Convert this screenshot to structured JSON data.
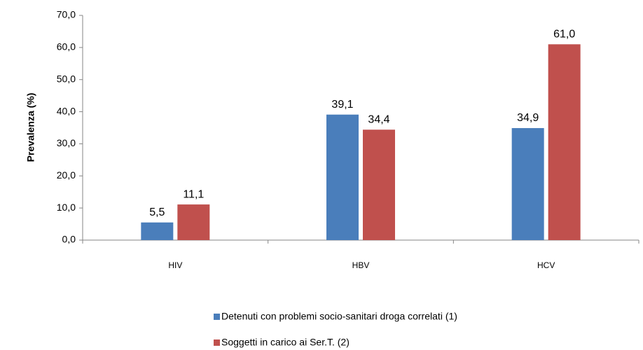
{
  "chart_data": {
    "type": "bar",
    "y_label": "Prevalenza (%)",
    "categories": [
      "HIV",
      "HBV",
      "HCV"
    ],
    "series": [
      {
        "name": "Detenuti con problemi socio-sanitari droga correlati (1)",
        "color": "#4a7ebb",
        "values": [
          5.5,
          39.1,
          34.9
        ],
        "value_labels": [
          "5,5",
          "39,1",
          "34,9"
        ]
      },
      {
        "name": "Soggetti in carico ai Ser.T. (2)",
        "color": "#c0504d",
        "values": [
          11.1,
          34.4,
          61.0
        ],
        "value_labels": [
          "11,1",
          "34,4",
          "61,0"
        ]
      }
    ],
    "ylim": [
      0,
      70
    ],
    "yticks": [
      {
        "value": 0,
        "label": "0,0"
      },
      {
        "value": 10,
        "label": "10,0"
      },
      {
        "value": 20,
        "label": "20,0"
      },
      {
        "value": 30,
        "label": "30,0"
      },
      {
        "value": 40,
        "label": "40,0"
      },
      {
        "value": 50,
        "label": "50,0"
      },
      {
        "value": 60,
        "label": "60,0"
      },
      {
        "value": 70,
        "label": "70,0"
      }
    ],
    "legend": "bottom"
  }
}
